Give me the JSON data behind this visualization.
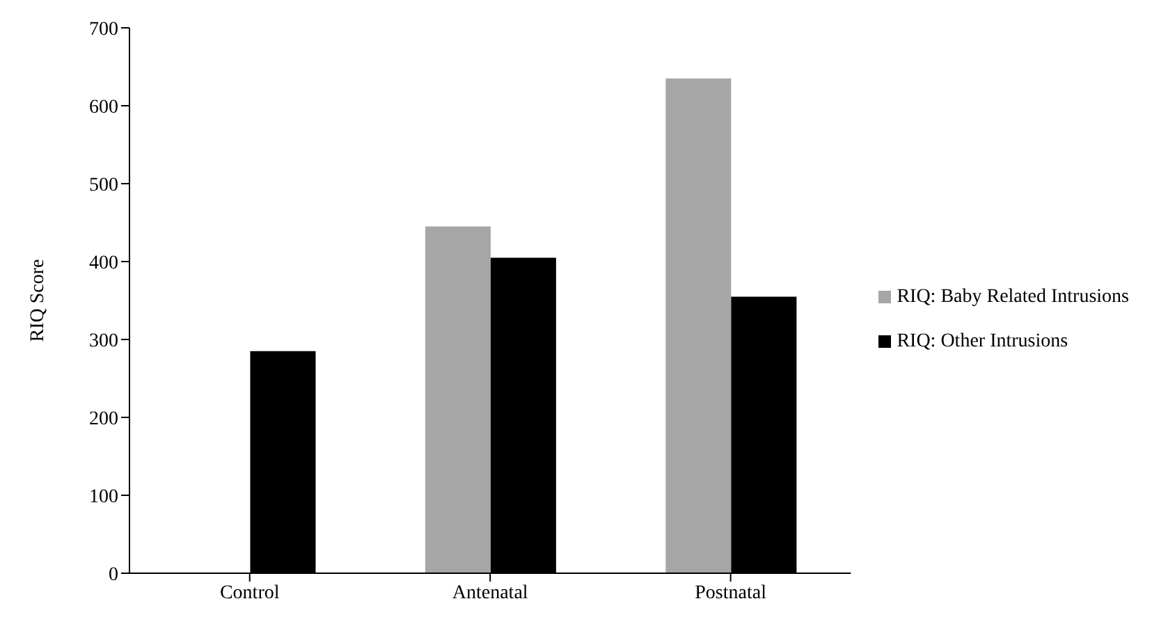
{
  "chart_data": {
    "type": "bar",
    "ylabel": "RIQ Score",
    "categories": [
      "Control",
      "Antenatal",
      "Postnatal"
    ],
    "series": [
      {
        "name": "RIQ: Baby Related Intrusions",
        "color": "#a6a6a6",
        "values": [
          null,
          445,
          635
        ]
      },
      {
        "name": "RIQ: Other Intrusions",
        "color": "#000000",
        "values": [
          285,
          405,
          355
        ]
      }
    ],
    "ylim": [
      0,
      700
    ],
    "yticks": [
      0,
      100,
      200,
      300,
      400,
      500,
      600,
      700
    ],
    "grid": false,
    "legend": "right"
  }
}
